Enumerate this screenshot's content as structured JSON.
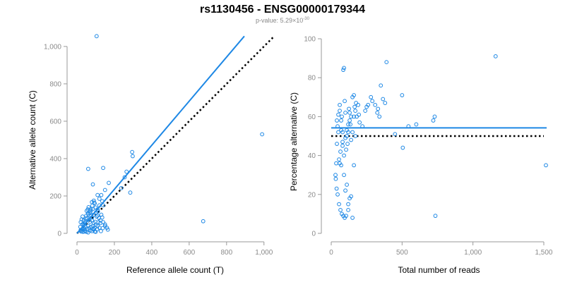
{
  "header": {
    "title": "rs1130456 - ENSG00000179344",
    "pvalue_prefix": "p-value: 5.29×10",
    "pvalue_exponent": "-30"
  },
  "colors": {
    "points": "#1e88e5",
    "fit": "#1e88e5",
    "reference": "#000000",
    "axis": "#9a9a9a"
  },
  "chart_data": [
    {
      "type": "scatter",
      "xlabel": "Reference allele count (T)",
      "ylabel": "Alternative allele count (C)",
      "xlim": [
        0,
        1050
      ],
      "ylim": [
        0,
        1060
      ],
      "xticks": [
        0,
        200,
        400,
        600,
        800,
        1000
      ],
      "xtick_labels": [
        "0",
        "200",
        "400",
        "600",
        "800",
        "1,000"
      ],
      "yticks": [
        0,
        200,
        400,
        600,
        800,
        1000
      ],
      "ytick_labels": [
        "0",
        "200",
        "400",
        "600",
        "800",
        "1,000"
      ],
      "fit_line": {
        "x": [
          0,
          895
        ],
        "y": [
          0,
          1055
        ]
      },
      "reference_line": {
        "x": [
          0,
          1050
        ],
        "y": [
          0,
          1050
        ]
      },
      "points": [
        [
          105,
          1055
        ],
        [
          990,
          530
        ],
        [
          675,
          65
        ],
        [
          295,
          435
        ],
        [
          298,
          413
        ],
        [
          265,
          330
        ],
        [
          285,
          218
        ],
        [
          255,
          300
        ],
        [
          237,
          242
        ],
        [
          170,
          270
        ],
        [
          150,
          232
        ],
        [
          140,
          350
        ],
        [
          60,
          345
        ],
        [
          85,
          262
        ],
        [
          90,
          175
        ],
        [
          80,
          167
        ],
        [
          110,
          205
        ],
        [
          120,
          185
        ],
        [
          130,
          205
        ],
        [
          135,
          172
        ],
        [
          95,
          160
        ],
        [
          100,
          138
        ],
        [
          110,
          128
        ],
        [
          120,
          150
        ],
        [
          140,
          150
        ],
        [
          165,
          20
        ],
        [
          160,
          30
        ],
        [
          140,
          60
        ],
        [
          135,
          85
        ],
        [
          150,
          40
        ],
        [
          70,
          125
        ],
        [
          75,
          130
        ],
        [
          60,
          110
        ],
        [
          50,
          95
        ],
        [
          55,
          82
        ],
        [
          65,
          75
        ],
        [
          70,
          62
        ],
        [
          80,
          70
        ],
        [
          90,
          55
        ],
        [
          100,
          45
        ],
        [
          110,
          40
        ],
        [
          120,
          30
        ],
        [
          60,
          40
        ],
        [
          45,
          35
        ],
        [
          40,
          25
        ],
        [
          30,
          20
        ],
        [
          25,
          12
        ],
        [
          20,
          18
        ],
        [
          35,
          50
        ],
        [
          30,
          90
        ],
        [
          25,
          75
        ],
        [
          20,
          60
        ],
        [
          40,
          10
        ],
        [
          50,
          8
        ],
        [
          60,
          5
        ],
        [
          70,
          15
        ],
        [
          80,
          12
        ],
        [
          90,
          20
        ],
        [
          95,
          10
        ],
        [
          100,
          8
        ],
        [
          105,
          90
        ],
        [
          110,
          95
        ],
        [
          90,
          100
        ],
        [
          80,
          85
        ],
        [
          75,
          95
        ],
        [
          45,
          62
        ],
        [
          35,
          30
        ],
        [
          28,
          22
        ],
        [
          22,
          10
        ],
        [
          55,
          22
        ],
        [
          65,
          28
        ],
        [
          75,
          35
        ],
        [
          85,
          40
        ],
        [
          95,
          30
        ],
        [
          115,
          60
        ],
        [
          125,
          70
        ],
        [
          130,
          100
        ],
        [
          85,
          130
        ],
        [
          70,
          108
        ],
        [
          60,
          102
        ],
        [
          48,
          78
        ],
        [
          38,
          45
        ],
        [
          42,
          55
        ],
        [
          52,
          120
        ],
        [
          58,
          128
        ],
        [
          62,
          140
        ],
        [
          72,
          118
        ],
        [
          82,
          148
        ],
        [
          92,
          165
        ],
        [
          102,
          112
        ],
        [
          112,
          118
        ],
        [
          118,
          82
        ],
        [
          125,
          55
        ],
        [
          32,
          8
        ],
        [
          18,
          35
        ],
        [
          28,
          48
        ],
        [
          36,
          70
        ],
        [
          44,
          15
        ],
        [
          88,
          25
        ],
        [
          98,
          62
        ],
        [
          108,
          22
        ],
        [
          128,
          12
        ],
        [
          138,
          28
        ],
        [
          150,
          48
        ]
      ]
    },
    {
      "type": "scatter",
      "xlabel": "Total number of reads",
      "ylabel": "Percentage alternative (C)",
      "xlim": [
        0,
        1520
      ],
      "ylim": [
        0,
        100
      ],
      "xticks": [
        0,
        500,
        1000,
        1500
      ],
      "xtick_labels": [
        "0",
        "500",
        "1,000",
        "1,500"
      ],
      "yticks": [
        0,
        20,
        40,
        60,
        80,
        100
      ],
      "ytick_labels": [
        "0",
        "20",
        "40",
        "60",
        "80",
        "100"
      ],
      "fit_line": {
        "x": [
          0,
          1520
        ],
        "y": [
          54.2,
          54.2
        ]
      },
      "reference_line": {
        "x": [
          0,
          1500
        ],
        "y": [
          50,
          50
        ]
      },
      "points": [
        [
          1160,
          91
        ],
        [
          1515,
          35
        ],
        [
          735,
          9
        ],
        [
          720,
          58
        ],
        [
          730,
          60
        ],
        [
          600,
          56
        ],
        [
          545,
          55
        ],
        [
          500,
          71
        ],
        [
          505,
          44
        ],
        [
          450,
          51
        ],
        [
          390,
          88
        ],
        [
          380,
          67
        ],
        [
          365,
          69
        ],
        [
          350,
          76
        ],
        [
          340,
          60
        ],
        [
          330,
          64
        ],
        [
          325,
          62
        ],
        [
          310,
          66
        ],
        [
          290,
          68
        ],
        [
          280,
          70
        ],
        [
          260,
          66
        ],
        [
          250,
          65
        ],
        [
          240,
          63
        ],
        [
          220,
          55
        ],
        [
          200,
          57
        ],
        [
          195,
          61
        ],
        [
          190,
          66
        ],
        [
          180,
          60
        ],
        [
          175,
          67
        ],
        [
          165,
          65
        ],
        [
          160,
          71
        ],
        [
          150,
          70
        ],
        [
          140,
          60
        ],
        [
          135,
          56
        ],
        [
          130,
          62
        ],
        [
          125,
          64
        ],
        [
          120,
          52
        ],
        [
          115,
          46
        ],
        [
          110,
          50
        ],
        [
          105,
          43
        ],
        [
          100,
          62
        ],
        [
          95,
          68
        ],
        [
          90,
          85
        ],
        [
          85,
          84
        ],
        [
          80,
          52
        ],
        [
          75,
          60
        ],
        [
          70,
          58
        ],
        [
          65,
          42
        ],
        [
          60,
          63
        ],
        [
          55,
          38
        ],
        [
          50,
          61
        ],
        [
          45,
          55
        ],
        [
          40,
          46
        ],
        [
          35,
          36
        ],
        [
          30,
          30
        ],
        [
          32,
          28
        ],
        [
          38,
          23
        ],
        [
          45,
          20
        ],
        [
          55,
          15
        ],
        [
          65,
          12
        ],
        [
          75,
          10
        ],
        [
          85,
          9
        ],
        [
          95,
          8
        ],
        [
          105,
          9
        ],
        [
          120,
          12
        ],
        [
          130,
          18
        ],
        [
          140,
          19
        ],
        [
          150,
          8
        ],
        [
          160,
          35
        ],
        [
          170,
          50
        ],
        [
          60,
          36
        ],
        [
          70,
          35
        ],
        [
          80,
          45
        ],
        [
          90,
          40
        ],
        [
          100,
          49
        ],
        [
          110,
          53
        ],
        [
          120,
          56
        ],
        [
          130,
          58
        ],
        [
          140,
          48
        ],
        [
          150,
          52
        ],
        [
          160,
          60
        ],
        [
          170,
          63
        ],
        [
          50,
          52
        ],
        [
          40,
          58
        ],
        [
          60,
          66
        ],
        [
          70,
          53
        ],
        [
          80,
          47
        ],
        [
          90,
          30
        ],
        [
          100,
          22
        ],
        [
          110,
          25
        ],
        [
          120,
          15
        ]
      ]
    }
  ]
}
